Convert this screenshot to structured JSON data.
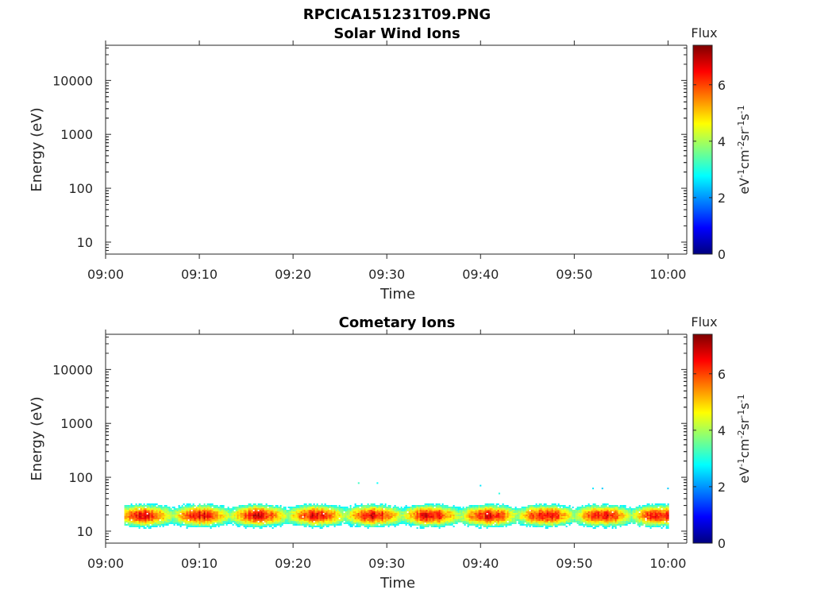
{
  "figure": {
    "main_title": "RPCICA151231T09.PNG"
  },
  "chart_data": [
    {
      "type": "heatmap",
      "title": "Solar Wind Ions",
      "xlabel": "Time",
      "ylabel": "Energy (eV)",
      "x_range": [
        "09:00",
        "10:02"
      ],
      "x_ticks": [
        "09:00",
        "09:10",
        "09:20",
        "09:30",
        "09:40",
        "09:50",
        "10:00"
      ],
      "y_scale": "log",
      "y_range": [
        6,
        45000
      ],
      "y_ticks": [
        "10",
        "100",
        "1000",
        "10000"
      ],
      "colorbar": {
        "title": "Flux",
        "label": "eV-1cm-2sr-1s-1",
        "range": [
          0,
          7.4
        ],
        "ticks": [
          "0",
          "2",
          "4",
          "6"
        ],
        "colormap": "jet"
      },
      "bands": []
    },
    {
      "type": "heatmap",
      "title": "Cometary Ions",
      "xlabel": "Time",
      "ylabel": "Energy (eV)",
      "x_range": [
        "09:00",
        "10:02"
      ],
      "x_ticks": [
        "09:00",
        "09:10",
        "09:20",
        "09:30",
        "09:40",
        "09:50",
        "10:00"
      ],
      "y_scale": "log",
      "y_range": [
        6,
        45000
      ],
      "y_ticks": [
        "10",
        "100",
        "1000",
        "10000"
      ],
      "colorbar": {
        "title": "Flux",
        "label": "eV-1cm-2sr-1s-1",
        "range": [
          0,
          7.4
        ],
        "ticks": [
          "0",
          "2",
          "4",
          "6"
        ],
        "colormap": "jet"
      },
      "bands": [
        {
          "start": "09:02",
          "end": "10:00",
          "energy_low": 10,
          "energy_high": 35,
          "peak_energy": 20,
          "peak_flux": 7.0
        }
      ],
      "scattered_points": [
        {
          "time": "09:27",
          "energy": 78,
          "flux": 3.2
        },
        {
          "time": "09:29",
          "energy": 78,
          "flux": 2.8
        },
        {
          "time": "09:40",
          "energy": 70,
          "flux": 2.6
        },
        {
          "time": "09:42",
          "energy": 50,
          "flux": 3.0
        },
        {
          "time": "09:52",
          "energy": 62,
          "flux": 2.6
        },
        {
          "time": "09:53",
          "energy": 62,
          "flux": 2.4
        },
        {
          "time": "10:00",
          "energy": 62,
          "flux": 2.4
        }
      ]
    }
  ]
}
